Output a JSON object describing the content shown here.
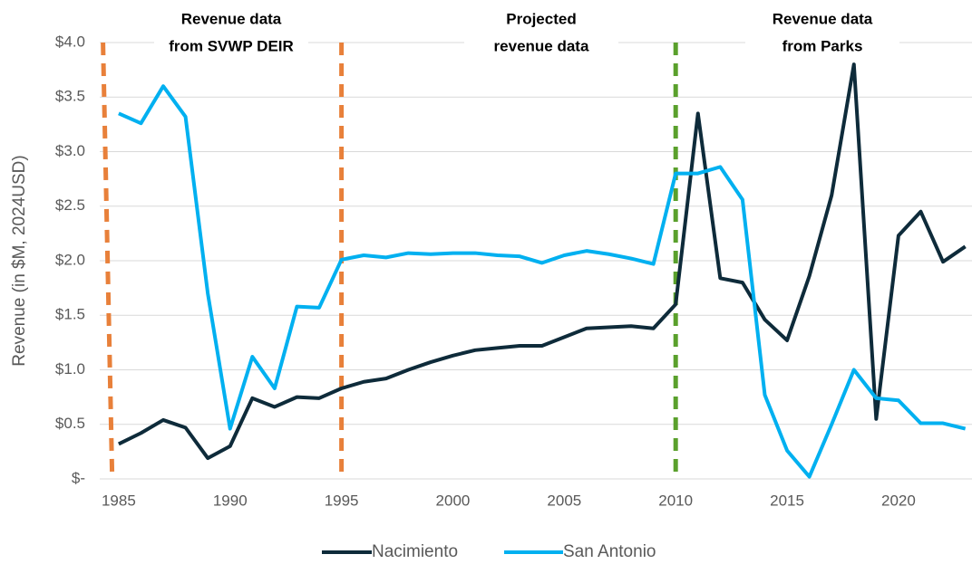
{
  "chart_data": {
    "type": "line",
    "y_label": "Revenue (in $M, 2024USD)",
    "x": [
      1985,
      1986,
      1987,
      1988,
      1989,
      1990,
      1991,
      1992,
      1993,
      1994,
      1995,
      1996,
      1997,
      1998,
      1999,
      2000,
      2001,
      2002,
      2003,
      2004,
      2005,
      2006,
      2007,
      2008,
      2009,
      2010,
      2011,
      2012,
      2013,
      2014,
      2015,
      2016,
      2017,
      2018,
      2019,
      2020,
      2021,
      2022,
      2023
    ],
    "series": [
      {
        "name": "Nacimiento",
        "color": "#0e2b3a",
        "values": [
          0.32,
          0.42,
          0.54,
          0.47,
          0.19,
          0.3,
          0.74,
          0.66,
          0.75,
          0.74,
          0.83,
          0.89,
          0.92,
          1.0,
          1.07,
          1.13,
          1.18,
          1.2,
          1.22,
          1.22,
          1.3,
          1.38,
          1.39,
          1.4,
          1.38,
          1.6,
          3.35,
          1.84,
          1.8,
          1.46,
          1.27,
          1.86,
          2.6,
          3.8,
          0.55,
          2.23,
          2.45,
          1.99,
          2.13
        ]
      },
      {
        "name": "San Antonio",
        "color": "#00b0f0",
        "values": [
          3.35,
          3.26,
          3.6,
          3.32,
          1.7,
          0.46,
          1.12,
          0.83,
          1.58,
          1.57,
          2.01,
          2.05,
          2.03,
          2.07,
          2.06,
          2.07,
          2.07,
          2.05,
          2.04,
          1.98,
          2.05,
          2.09,
          2.06,
          2.02,
          1.97,
          2.8,
          2.8,
          2.86,
          2.56,
          0.77,
          0.26,
          0.02,
          0.5,
          1.0,
          0.74,
          0.72,
          0.51,
          0.51,
          0.46
        ]
      }
    ],
    "xlim": [
      1984.15,
      2023.3
    ],
    "xticks": [
      1985,
      1990,
      1995,
      2000,
      2005,
      2010,
      2015,
      2020
    ],
    "ylim": [
      0,
      4
    ],
    "yticks": [
      {
        "value": 0,
        "label": "$-"
      },
      {
        "value": 0.5,
        "label": "$0.5"
      },
      {
        "value": 1,
        "label": "$1.0"
      },
      {
        "value": 1.5,
        "label": "$1.5"
      },
      {
        "value": 2,
        "label": "$2.0"
      },
      {
        "value": 2.5,
        "label": "$2.5"
      },
      {
        "value": 3,
        "label": "$3.0"
      },
      {
        "value": 3.5,
        "label": "$3.5"
      },
      {
        "value": 4,
        "label": "$4.0"
      }
    ],
    "grid": true,
    "legend": "bottom",
    "vlines": [
      {
        "x": 1984.5,
        "color": "#e8803a"
      },
      {
        "x": 1995,
        "color": "#e8803a"
      },
      {
        "x": 2010,
        "color": "#5aa02c"
      }
    ],
    "annotations": [
      [
        "Revenue data",
        "from SVWP DEIR"
      ],
      [
        "Projected",
        "revenue data"
      ],
      [
        "Revenue data",
        "from Parks"
      ]
    ]
  }
}
